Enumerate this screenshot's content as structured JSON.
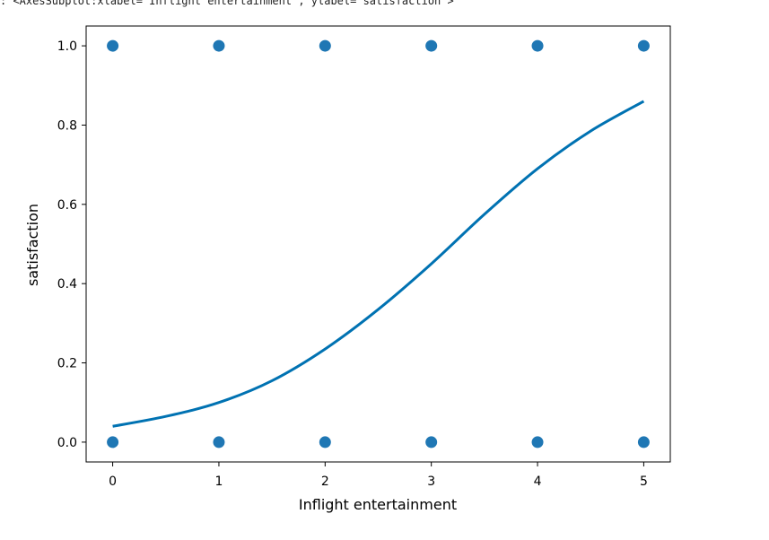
{
  "output_repr": ": <AxesSubplot:xlabel='Inflight entertainment', ylabel='satisfaction'>",
  "colors": {
    "marker": "#1f77b4",
    "fit_line": "#0072b2",
    "axes": "#000000"
  },
  "chart_data": {
    "type": "scatter",
    "title": "",
    "xlabel": "Inflight entertainment",
    "ylabel": "satisfaction",
    "xlim": [
      -0.25,
      5.25
    ],
    "ylim": [
      -0.05,
      1.05
    ],
    "x_ticks": [
      0,
      1,
      2,
      3,
      4,
      5
    ],
    "x_tick_labels": [
      "0",
      "1",
      "2",
      "3",
      "4",
      "5"
    ],
    "y_ticks": [
      0.0,
      0.2,
      0.4,
      0.6,
      0.8,
      1.0
    ],
    "y_tick_labels": [
      "0.0",
      "0.2",
      "0.4",
      "0.6",
      "0.8",
      "1.0"
    ],
    "grid": false,
    "points": [
      {
        "x": 0,
        "y": 1
      },
      {
        "x": 1,
        "y": 1
      },
      {
        "x": 2,
        "y": 1
      },
      {
        "x": 3,
        "y": 1
      },
      {
        "x": 4,
        "y": 1
      },
      {
        "x": 5,
        "y": 1
      },
      {
        "x": 0,
        "y": 0
      },
      {
        "x": 1,
        "y": 0
      },
      {
        "x": 2,
        "y": 0
      },
      {
        "x": 3,
        "y": 0
      },
      {
        "x": 4,
        "y": 0
      },
      {
        "x": 5,
        "y": 0
      }
    ],
    "fit_curve": {
      "x": [
        0,
        0.5,
        1,
        1.5,
        2,
        2.5,
        3,
        3.5,
        4,
        4.5,
        5
      ],
      "y": [
        0.04,
        0.065,
        0.1,
        0.155,
        0.235,
        0.335,
        0.45,
        0.575,
        0.69,
        0.785,
        0.86
      ]
    }
  }
}
